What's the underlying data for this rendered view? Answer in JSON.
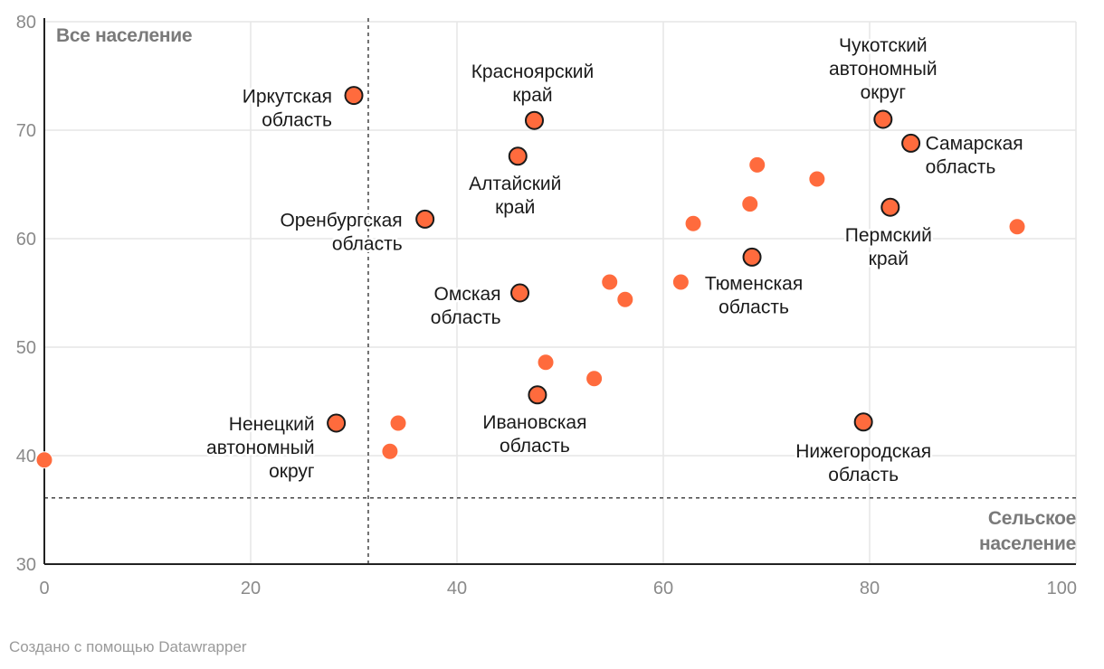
{
  "chart_data": {
    "type": "scatter",
    "title": "",
    "xlabel": "",
    "ylabel": "",
    "xlim": [
      0,
      100
    ],
    "ylim": [
      30,
      80
    ],
    "x_ticks": [
      0,
      20,
      40,
      60,
      80,
      100
    ],
    "y_ticks": [
      30,
      40,
      50,
      60,
      70,
      80
    ],
    "grid": true,
    "reference_lines": {
      "vertical_x": 31.4,
      "horizontal_y": 36.1,
      "style": "dashed"
    },
    "annotations": {
      "top_left": "Все население",
      "bottom_right": [
        "Сельское",
        "население"
      ]
    },
    "colors": {
      "point": "#ff6b3d",
      "outline": "#1a1a1a",
      "grid": "#e6e6e6"
    },
    "points": [
      {
        "x": 30.0,
        "y": 73.2,
        "label": [
          "Иркутская",
          "область"
        ],
        "outlined": true
      },
      {
        "x": 47.5,
        "y": 70.9,
        "label": [
          "Красноярский",
          "край"
        ],
        "outlined": true
      },
      {
        "x": 45.9,
        "y": 67.6,
        "label": [
          "Алтайский",
          "край"
        ],
        "outlined": true
      },
      {
        "x": 36.9,
        "y": 61.8,
        "label": [
          "Оренбургская",
          "область"
        ],
        "outlined": true
      },
      {
        "x": 46.1,
        "y": 55.0,
        "label": [
          "Омская",
          "область"
        ],
        "outlined": true
      },
      {
        "x": 47.8,
        "y": 45.6,
        "label": [
          "Ивановская",
          "область"
        ],
        "outlined": true
      },
      {
        "x": 28.3,
        "y": 43.0,
        "label": [
          "Ненецкий",
          "автономный",
          "округ"
        ],
        "outlined": true
      },
      {
        "x": 81.3,
        "y": 71.0,
        "label": [
          "Чукотский",
          "автономный",
          "округ"
        ],
        "outlined": true
      },
      {
        "x": 84.0,
        "y": 68.8,
        "label": [
          "Самарская",
          "область"
        ],
        "outlined": true
      },
      {
        "x": 82.0,
        "y": 62.9,
        "label": [
          "Пермский",
          "край"
        ],
        "outlined": true
      },
      {
        "x": 68.6,
        "y": 58.3,
        "label": [
          "Тюменская",
          "область"
        ],
        "outlined": true
      },
      {
        "x": 79.4,
        "y": 43.1,
        "label": [
          "Нижегородская",
          "область"
        ],
        "outlined": true
      },
      {
        "x": 0.0,
        "y": 39.6,
        "outlined": false
      },
      {
        "x": 33.5,
        "y": 40.4,
        "outlined": false
      },
      {
        "x": 34.3,
        "y": 43.0,
        "outlined": false
      },
      {
        "x": 48.6,
        "y": 48.6,
        "outlined": false
      },
      {
        "x": 53.3,
        "y": 47.1,
        "outlined": false
      },
      {
        "x": 54.8,
        "y": 56.0,
        "outlined": false
      },
      {
        "x": 56.3,
        "y": 54.4,
        "outlined": false
      },
      {
        "x": 61.7,
        "y": 56.0,
        "outlined": false
      },
      {
        "x": 62.9,
        "y": 61.4,
        "outlined": false
      },
      {
        "x": 68.4,
        "y": 63.2,
        "outlined": false
      },
      {
        "x": 69.1,
        "y": 66.8,
        "outlined": false
      },
      {
        "x": 74.9,
        "y": 65.5,
        "outlined": false
      },
      {
        "x": 94.3,
        "y": 61.1,
        "outlined": false
      }
    ]
  },
  "footer": {
    "credit": "Создано с помощью Datawrapper"
  }
}
